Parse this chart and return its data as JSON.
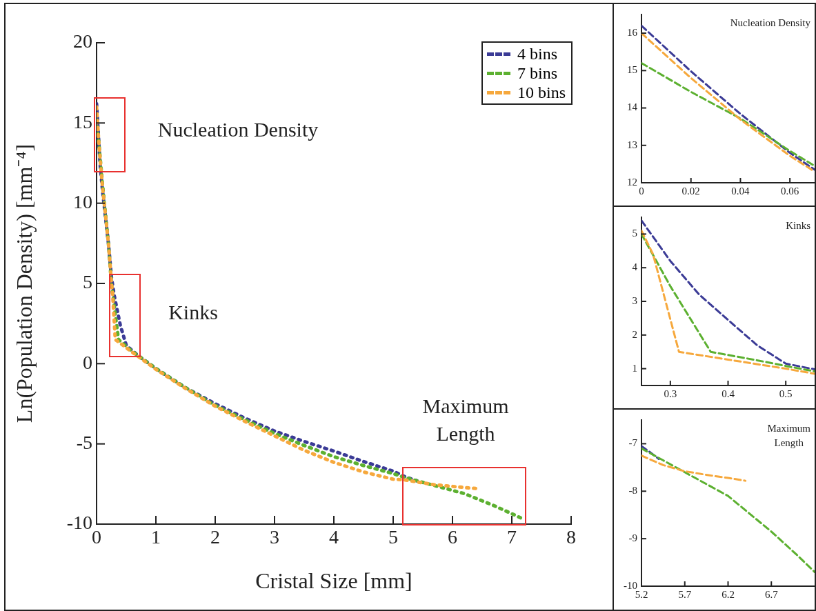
{
  "chart_data": [
    {
      "type": "line",
      "xlabel": "Cristal Size [mm]",
      "ylabel": "Ln(Population Density) [mm⁻⁴]",
      "xlim": [
        0,
        8
      ],
      "ylim": [
        -10,
        20
      ],
      "xticks": [
        0,
        1,
        2,
        3,
        4,
        5,
        6,
        7,
        8
      ],
      "yticks": [
        -10,
        -5,
        0,
        5,
        10,
        15,
        20
      ],
      "legend": "top right",
      "line_style": "dashed",
      "annotations": [
        "Nucleation Density",
        "Kinks",
        "Maximum\nLength"
      ],
      "series": [
        {
          "name": "4 bins",
          "color": "#3b3b96",
          "x": [
            0,
            0.06,
            0.1,
            0.2,
            0.25,
            0.3,
            0.4,
            0.5,
            0.55,
            0.7,
            1,
            1.5,
            2,
            2.5,
            3,
            3.5,
            4,
            4.5,
            5,
            5.2,
            5.4
          ],
          "values": [
            16.2,
            12.4,
            10.8,
            7.5,
            5.4,
            4.2,
            2.4,
            1.15,
            0.98,
            0.5,
            -0.3,
            -1.5,
            -2.5,
            -3.4,
            -4.2,
            -4.85,
            -5.45,
            -6.1,
            -6.7,
            -7.05,
            -7.3
          ]
        },
        {
          "name": "7 bins",
          "color": "#5cb030",
          "x": [
            0,
            0.04,
            0.07,
            0.1,
            0.2,
            0.25,
            0.3,
            0.37,
            0.5,
            0.55,
            0.7,
            1,
            1.5,
            2,
            2.5,
            3,
            3.5,
            4,
            4.5,
            5,
            5.2,
            5.7,
            6,
            6.2,
            6.5,
            6.7,
            7,
            7.2
          ],
          "values": [
            15.2,
            13.72,
            12.45,
            11.2,
            7.5,
            5.0,
            3.5,
            1.5,
            1.08,
            0.92,
            0.5,
            -0.3,
            -1.5,
            -2.6,
            -3.5,
            -4.35,
            -5.1,
            -5.8,
            -6.35,
            -6.85,
            -7.1,
            -7.6,
            -7.9,
            -8.1,
            -8.55,
            -8.85,
            -9.35,
            -9.7
          ]
        },
        {
          "name": "10 bins",
          "color": "#f6a83c",
          "x": [
            0,
            0.04,
            0.07,
            0.1,
            0.2,
            0.25,
            0.27,
            0.315,
            0.4,
            0.5,
            0.55,
            0.7,
            1,
            1.5,
            2,
            2.5,
            3,
            3.5,
            4,
            4.5,
            5,
            5.2,
            5.7,
            6,
            6.2,
            6.4
          ],
          "values": [
            16.0,
            13.69,
            12.3,
            11.0,
            7.5,
            5.1,
            4.4,
            1.5,
            1.27,
            1.0,
            0.85,
            0.45,
            -0.35,
            -1.55,
            -2.65,
            -3.6,
            -4.5,
            -5.4,
            -6.15,
            -6.75,
            -7.2,
            -7.25,
            -7.55,
            -7.65,
            -7.72,
            -7.78
          ]
        }
      ]
    },
    {
      "type": "line",
      "xlim": [
        0,
        0.07
      ],
      "ylim": [
        12,
        16.5
      ],
      "xticks": [
        0,
        0.02,
        0.04,
        0.06
      ],
      "yticks": [
        12,
        13,
        14,
        15,
        16
      ],
      "line_style": "dashed",
      "annotations": [
        "Nucleation Density"
      ],
      "series": [
        {
          "color": "#3b3b96",
          "x": [
            0,
            0.02,
            0.04,
            0.06,
            0.07
          ],
          "values": [
            16.2,
            14.98,
            13.84,
            12.8,
            12.35
          ]
        },
        {
          "color": "#5cb030",
          "x": [
            0,
            0.02,
            0.04,
            0.06,
            0.07
          ],
          "values": [
            15.2,
            14.43,
            13.72,
            12.85,
            12.45
          ]
        },
        {
          "color": "#f6a83c",
          "x": [
            0,
            0.02,
            0.04,
            0.06,
            0.07
          ],
          "values": [
            16.0,
            14.8,
            13.69,
            12.72,
            12.3
          ]
        }
      ]
    },
    {
      "type": "line",
      "xlim": [
        0.25,
        0.55
      ],
      "ylim": [
        0.5,
        5.5
      ],
      "xticks": [
        0.3,
        0.4,
        0.5
      ],
      "yticks": [
        1,
        2,
        3,
        4,
        5
      ],
      "line_style": "dashed",
      "annotations": [
        "Kinks"
      ],
      "series": [
        {
          "color": "#3b3b96",
          "x": [
            0.25,
            0.3,
            0.35,
            0.4,
            0.45,
            0.5,
            0.55
          ],
          "values": [
            5.4,
            4.2,
            3.2,
            2.45,
            1.7,
            1.15,
            0.98
          ]
        },
        {
          "color": "#5cb030",
          "x": [
            0.25,
            0.3,
            0.37,
            0.45,
            0.5,
            0.55
          ],
          "values": [
            5.0,
            3.45,
            1.5,
            1.25,
            1.08,
            0.92
          ]
        },
        {
          "color": "#f6a83c",
          "x": [
            0.25,
            0.27,
            0.315,
            0.4,
            0.5,
            0.55
          ],
          "values": [
            5.1,
            4.4,
            1.5,
            1.27,
            1.0,
            0.85
          ]
        }
      ]
    },
    {
      "type": "line",
      "xlim": [
        5.2,
        7.2
      ],
      "ylim": [
        -10,
        -6.5
      ],
      "xticks": [
        5.2,
        5.7,
        6.2,
        6.7
      ],
      "yticks": [
        -10,
        -9,
        -8,
        -7
      ],
      "line_style": "dashed",
      "annotations": [
        "Maximum\nLength"
      ],
      "series": [
        {
          "color": "#3b3b96",
          "x": [
            5.2,
            5.3,
            5.4
          ],
          "values": [
            -7.05,
            -7.18,
            -7.32
          ]
        },
        {
          "color": "#5cb030",
          "x": [
            5.2,
            5.45,
            5.7,
            6.0,
            6.2,
            6.5,
            6.7,
            7.0,
            7.2
          ],
          "values": [
            -7.1,
            -7.35,
            -7.6,
            -7.9,
            -8.1,
            -8.55,
            -8.85,
            -9.35,
            -9.7
          ]
        },
        {
          "color": "#f6a83c",
          "x": [
            5.2,
            5.45,
            5.7,
            6.0,
            6.2,
            6.4
          ],
          "values": [
            -7.25,
            -7.45,
            -7.58,
            -7.67,
            -7.72,
            -7.78
          ]
        }
      ]
    }
  ]
}
